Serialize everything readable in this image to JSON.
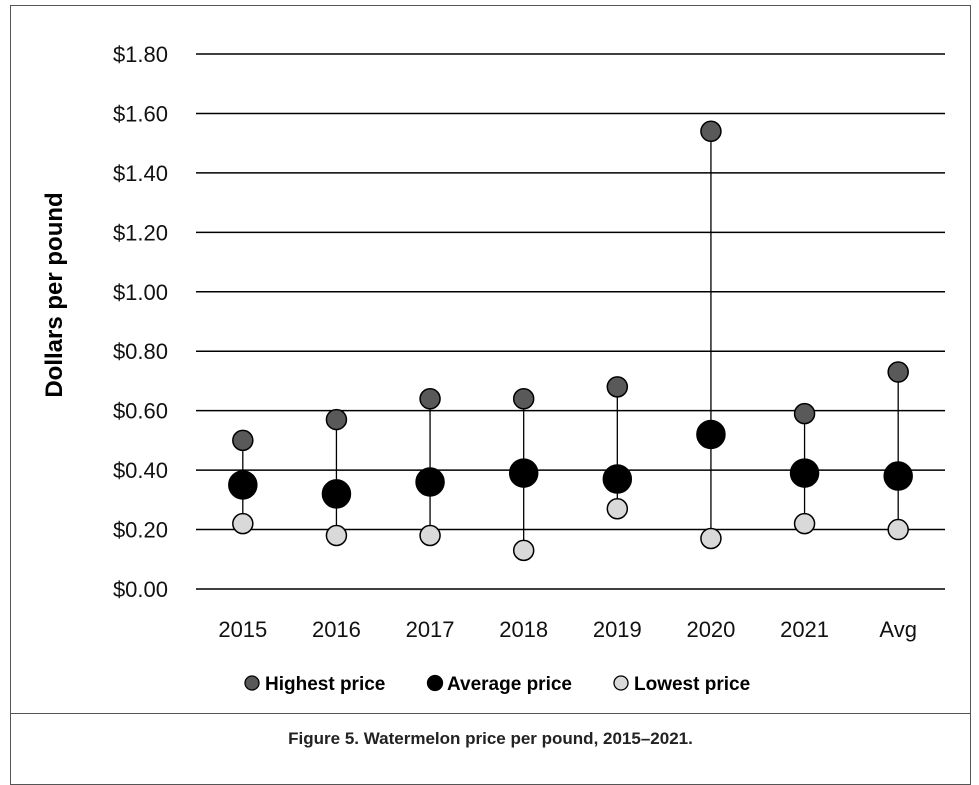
{
  "chart_data": {
    "type": "scatter",
    "categories": [
      "2015",
      "2016",
      "2017",
      "2018",
      "2019",
      "2020",
      "2021",
      "Avg"
    ],
    "series": [
      {
        "name": "Highest price",
        "values": [
          0.5,
          0.57,
          0.64,
          0.64,
          0.68,
          1.54,
          0.59,
          0.73
        ],
        "color": "#595959"
      },
      {
        "name": "Average price",
        "values": [
          0.35,
          0.32,
          0.36,
          0.39,
          0.37,
          0.52,
          0.39,
          0.38
        ],
        "color": "#000000"
      },
      {
        "name": "Lowest price",
        "values": [
          0.22,
          0.18,
          0.18,
          0.13,
          0.27,
          0.17,
          0.22,
          0.2
        ],
        "color": "#d9d9d9"
      }
    ],
    "ylabel": "Dollars per pound",
    "ylim": [
      0,
      1.8
    ],
    "yticks": [
      "$0.00",
      "$0.20",
      "$0.40",
      "$0.60",
      "$0.80",
      "$1.00",
      "$1.20",
      "$1.40",
      "$1.60",
      "$1.80"
    ],
    "grid": true,
    "legend_position": "bottom"
  },
  "caption": "Figure 5. Watermelon price per pound, 2015–2021."
}
